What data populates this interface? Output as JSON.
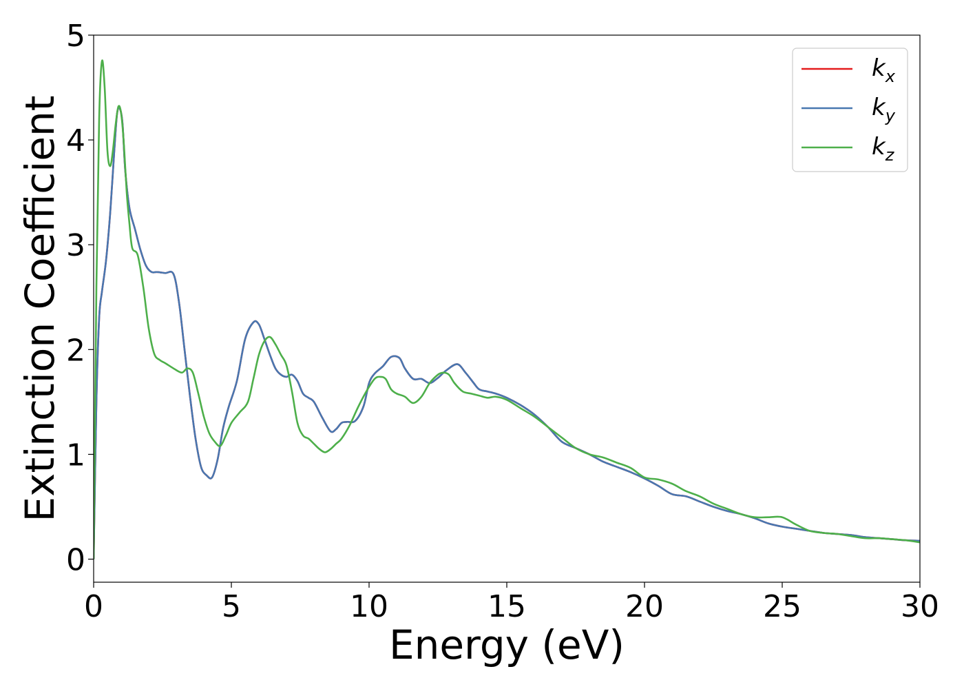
{
  "chart_data": {
    "type": "line",
    "title": "",
    "xlabel": "Energy (eV)",
    "ylabel": "Extinction Coefficient",
    "xlim": [
      0,
      30
    ],
    "ylim": [
      -0.22,
      5.0
    ],
    "xticks": [
      0,
      5,
      10,
      15,
      20,
      25,
      30
    ],
    "yticks": [
      0,
      1,
      2,
      3,
      4,
      5
    ],
    "xtick_labels": [
      "0",
      "5",
      "10",
      "15",
      "20",
      "25",
      "30"
    ],
    "ytick_labels": [
      "0",
      "1",
      "2",
      "3",
      "4",
      "5"
    ],
    "grid": false,
    "legend_position": "top-right",
    "series": [
      {
        "name": "k_x",
        "label_main": "k",
        "label_sub": "x",
        "color": "#e41a1c",
        "x": [
          0,
          0.1,
          0.2,
          0.3,
          0.45,
          0.6,
          0.75,
          0.85,
          0.95,
          1.05,
          1.15,
          1.3,
          1.5,
          1.7,
          1.9,
          2.1,
          2.3,
          2.6,
          2.9,
          3.1,
          3.3,
          3.5,
          3.7,
          3.9,
          4.1,
          4.3,
          4.5,
          4.7,
          4.9,
          5.2,
          5.5,
          5.8,
          6.0,
          6.2,
          6.4,
          6.6,
          6.8,
          7.0,
          7.2,
          7.4,
          7.6,
          7.8,
          8.0,
          8.3,
          8.6,
          8.8,
          9.0,
          9.2,
          9.5,
          9.8,
          10.0,
          10.2,
          10.5,
          10.8,
          11.1,
          11.3,
          11.6,
          11.9,
          12.2,
          12.5,
          12.8,
          13.2,
          13.5,
          13.8,
          14.0,
          14.3,
          14.6,
          15.0,
          15.5,
          16.0,
          16.5,
          17.0,
          17.5,
          18.0,
          18.5,
          19.0,
          19.5,
          20.0,
          20.5,
          21.0,
          21.5,
          22.0,
          22.5,
          23.0,
          23.5,
          24.0,
          24.5,
          25.0,
          25.5,
          26.0,
          26.5,
          27.0,
          27.5,
          28.0,
          28.5,
          29.0,
          29.5,
          30.0
        ],
        "y": [
          0,
          1.5,
          2.3,
          2.55,
          2.85,
          3.3,
          3.9,
          4.25,
          4.3,
          4.15,
          3.7,
          3.35,
          3.15,
          2.95,
          2.8,
          2.74,
          2.74,
          2.73,
          2.72,
          2.45,
          2.0,
          1.55,
          1.15,
          0.88,
          0.8,
          0.78,
          0.95,
          1.25,
          1.45,
          1.7,
          2.1,
          2.26,
          2.24,
          2.1,
          1.95,
          1.82,
          1.76,
          1.74,
          1.76,
          1.7,
          1.58,
          1.54,
          1.5,
          1.35,
          1.22,
          1.24,
          1.3,
          1.31,
          1.32,
          1.46,
          1.68,
          1.77,
          1.84,
          1.93,
          1.92,
          1.82,
          1.72,
          1.72,
          1.68,
          1.73,
          1.8,
          1.86,
          1.78,
          1.68,
          1.62,
          1.6,
          1.58,
          1.54,
          1.47,
          1.38,
          1.26,
          1.12,
          1.06,
          1.0,
          0.93,
          0.88,
          0.83,
          0.77,
          0.7,
          0.62,
          0.6,
          0.55,
          0.5,
          0.46,
          0.43,
          0.39,
          0.34,
          0.31,
          0.29,
          0.27,
          0.25,
          0.24,
          0.23,
          0.21,
          0.2,
          0.19,
          0.18,
          0.175
        ]
      },
      {
        "name": "k_y",
        "label_main": "k",
        "label_sub": "y",
        "color": "#4877b0",
        "x": [
          0,
          0.1,
          0.2,
          0.3,
          0.45,
          0.6,
          0.75,
          0.85,
          0.95,
          1.05,
          1.15,
          1.3,
          1.5,
          1.7,
          1.9,
          2.1,
          2.3,
          2.6,
          2.9,
          3.1,
          3.3,
          3.5,
          3.7,
          3.9,
          4.1,
          4.3,
          4.5,
          4.7,
          4.9,
          5.2,
          5.5,
          5.8,
          6.0,
          6.2,
          6.4,
          6.6,
          6.8,
          7.0,
          7.2,
          7.4,
          7.6,
          7.8,
          8.0,
          8.3,
          8.6,
          8.8,
          9.0,
          9.2,
          9.5,
          9.8,
          10.0,
          10.2,
          10.5,
          10.8,
          11.1,
          11.3,
          11.6,
          11.9,
          12.2,
          12.5,
          12.8,
          13.2,
          13.5,
          13.8,
          14.0,
          14.3,
          14.6,
          15.0,
          15.5,
          16.0,
          16.5,
          17.0,
          17.5,
          18.0,
          18.5,
          19.0,
          19.5,
          20.0,
          20.5,
          21.0,
          21.5,
          22.0,
          22.5,
          23.0,
          23.5,
          24.0,
          24.5,
          25.0,
          25.5,
          26.0,
          26.5,
          27.0,
          27.5,
          28.0,
          28.5,
          29.0,
          29.5,
          30.0
        ],
        "y": [
          0,
          1.5,
          2.3,
          2.55,
          2.85,
          3.3,
          3.9,
          4.25,
          4.3,
          4.15,
          3.7,
          3.35,
          3.15,
          2.95,
          2.8,
          2.74,
          2.74,
          2.73,
          2.72,
          2.45,
          2.0,
          1.55,
          1.15,
          0.88,
          0.8,
          0.78,
          0.95,
          1.25,
          1.45,
          1.7,
          2.1,
          2.26,
          2.24,
          2.1,
          1.95,
          1.82,
          1.76,
          1.74,
          1.76,
          1.7,
          1.58,
          1.54,
          1.5,
          1.35,
          1.22,
          1.24,
          1.3,
          1.31,
          1.32,
          1.46,
          1.68,
          1.77,
          1.84,
          1.93,
          1.92,
          1.82,
          1.72,
          1.72,
          1.68,
          1.73,
          1.8,
          1.86,
          1.78,
          1.68,
          1.62,
          1.6,
          1.58,
          1.54,
          1.47,
          1.38,
          1.26,
          1.12,
          1.06,
          1.0,
          0.93,
          0.88,
          0.83,
          0.77,
          0.7,
          0.62,
          0.6,
          0.55,
          0.5,
          0.46,
          0.43,
          0.39,
          0.34,
          0.31,
          0.29,
          0.27,
          0.25,
          0.24,
          0.23,
          0.21,
          0.2,
          0.19,
          0.18,
          0.175
        ]
      },
      {
        "name": "k_z",
        "label_main": "k",
        "label_sub": "z",
        "color": "#4daf4a",
        "x": [
          0,
          0.1,
          0.2,
          0.3,
          0.4,
          0.5,
          0.6,
          0.7,
          0.8,
          0.9,
          1.0,
          1.1,
          1.2,
          1.3,
          1.4,
          1.6,
          1.8,
          2.0,
          2.2,
          2.4,
          2.6,
          2.9,
          3.2,
          3.4,
          3.6,
          3.8,
          4.0,
          4.2,
          4.4,
          4.6,
          4.8,
          5.0,
          5.3,
          5.6,
          5.8,
          6.0,
          6.2,
          6.4,
          6.6,
          6.8,
          7.0,
          7.2,
          7.4,
          7.6,
          7.8,
          8.0,
          8.2,
          8.4,
          8.6,
          8.8,
          9.0,
          9.3,
          9.6,
          9.9,
          10.2,
          10.4,
          10.6,
          10.8,
          11.0,
          11.3,
          11.6,
          11.9,
          12.2,
          12.5,
          12.7,
          12.9,
          13.1,
          13.4,
          13.7,
          14.0,
          14.3,
          14.6,
          15.0,
          15.5,
          16.0,
          16.5,
          17.0,
          17.5,
          18.0,
          18.5,
          19.0,
          19.5,
          20.0,
          20.5,
          21.0,
          21.5,
          22.0,
          22.5,
          23.0,
          23.5,
          24.0,
          24.5,
          25.0,
          25.5,
          26.0,
          26.5,
          27.0,
          27.5,
          28.0,
          28.5,
          29.0,
          29.5,
          30.0
        ],
        "y": [
          0,
          2.6,
          4.2,
          4.75,
          4.5,
          3.9,
          3.75,
          3.9,
          4.15,
          4.32,
          4.25,
          3.95,
          3.5,
          3.2,
          2.97,
          2.9,
          2.6,
          2.2,
          1.96,
          1.9,
          1.87,
          1.82,
          1.78,
          1.82,
          1.78,
          1.58,
          1.36,
          1.2,
          1.12,
          1.08,
          1.18,
          1.3,
          1.4,
          1.5,
          1.72,
          1.95,
          2.08,
          2.12,
          2.05,
          1.95,
          1.85,
          1.6,
          1.3,
          1.18,
          1.15,
          1.1,
          1.05,
          1.02,
          1.05,
          1.1,
          1.15,
          1.28,
          1.45,
          1.6,
          1.72,
          1.74,
          1.72,
          1.62,
          1.58,
          1.55,
          1.49,
          1.55,
          1.68,
          1.76,
          1.78,
          1.76,
          1.68,
          1.6,
          1.58,
          1.56,
          1.54,
          1.55,
          1.52,
          1.44,
          1.36,
          1.26,
          1.16,
          1.06,
          1.0,
          0.97,
          0.92,
          0.87,
          0.78,
          0.76,
          0.72,
          0.65,
          0.6,
          0.53,
          0.48,
          0.43,
          0.4,
          0.4,
          0.4,
          0.33,
          0.27,
          0.25,
          0.24,
          0.22,
          0.2,
          0.2,
          0.19,
          0.18,
          0.16
        ]
      }
    ]
  }
}
